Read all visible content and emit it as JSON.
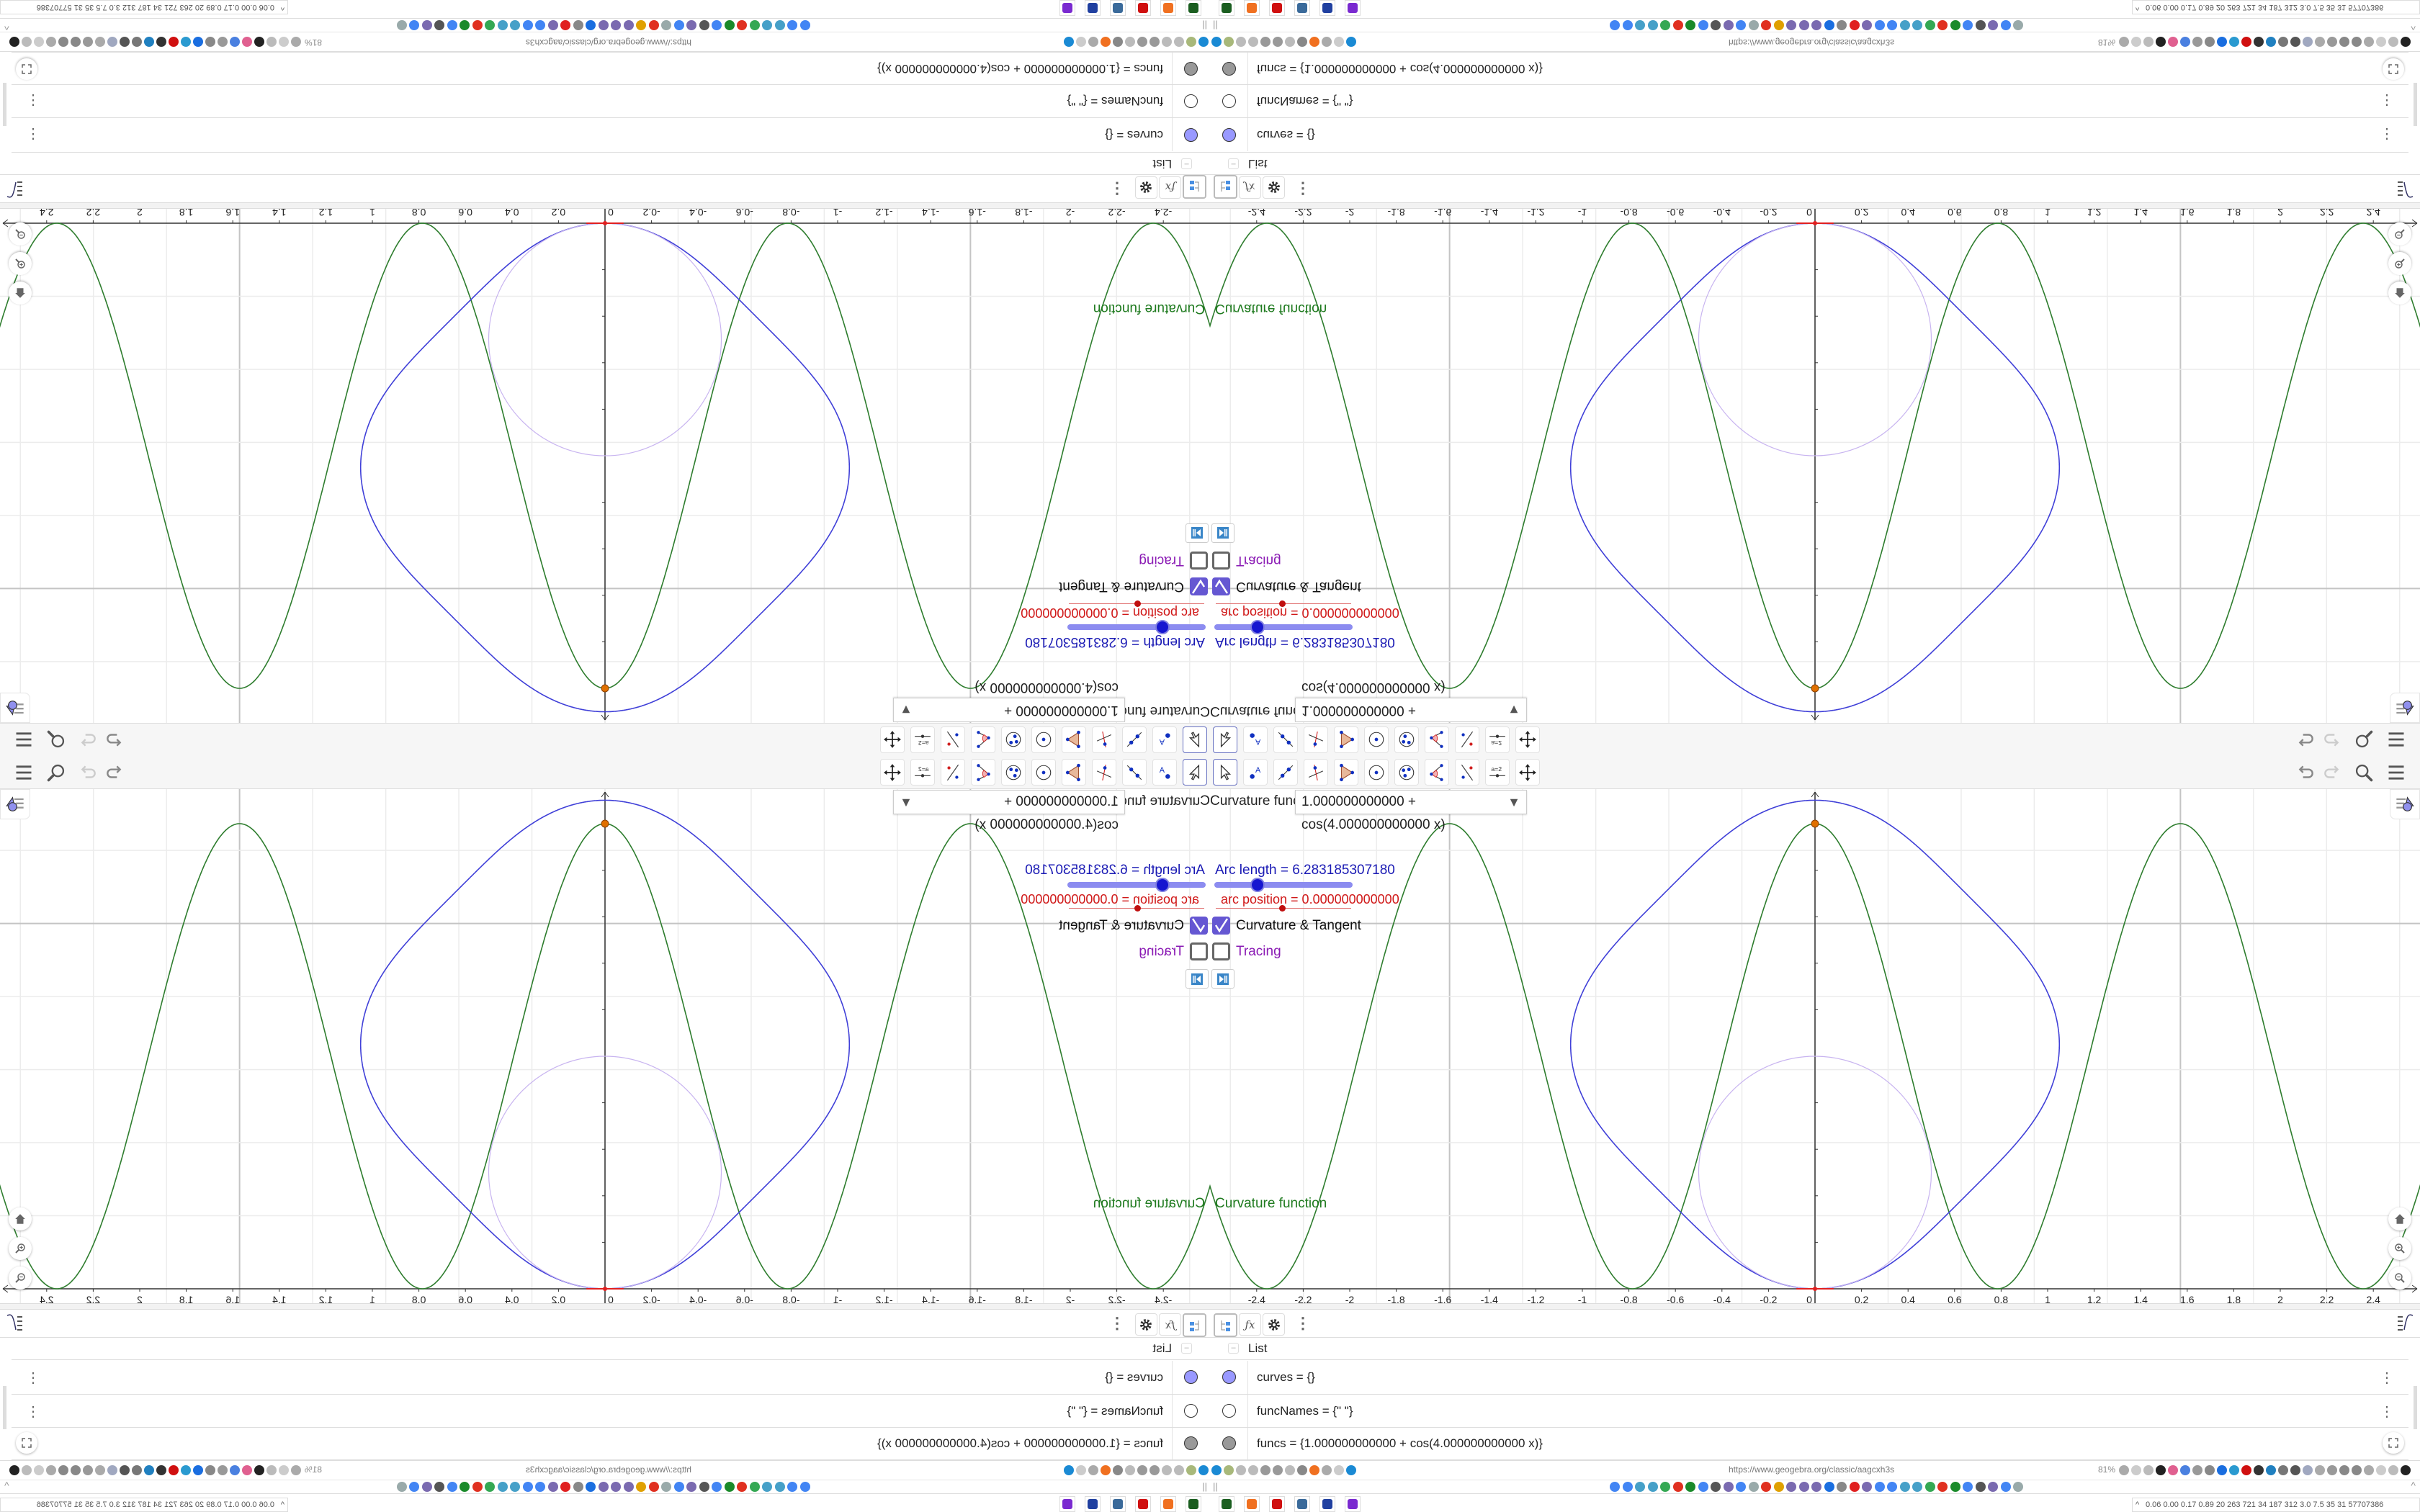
{
  "toolbar": {
    "tools": [
      "move-tool",
      "point-tool",
      "line-tool",
      "perpendicular-line-tool",
      "polygon-tool",
      "circle-center-tool",
      "circle-three-points-tool",
      "angle-tool",
      "reflect-tool",
      "slider-tool",
      "move-graphics-view-tool"
    ],
    "selected_tool": "move-tool",
    "slider_tool_text": "a=2",
    "point_tool_text": "A"
  },
  "graphics": {
    "input_label": "Curvature function",
    "input_value": "1.000000000000 + cos(4.000000000000 x)",
    "arc_length_label": "Arc length = 6.283185307180",
    "arc_length_slider_fraction": 0.31,
    "arc_position_label": "arc position = 0.000000000000",
    "arc_position_slider_fraction": 0.49,
    "checkbox_curvature": {
      "label": "Curvature & Tangent",
      "checked": true
    },
    "checkbox_tracing": {
      "label": "Tracing",
      "checked": false
    },
    "curve_label": "Curvature function",
    "x_tick_labels": [
      "-2.4",
      "-2.2",
      "-2",
      "-1.8",
      "-1.6",
      "-1.4",
      "-1.2",
      "-1",
      "-0.8",
      "-0.6",
      "-0.4",
      "-0.2",
      "0",
      "0.2",
      "0.4",
      "0.6",
      "0.8",
      "1",
      "1.2",
      "1.4",
      "1.6",
      "1.8",
      "2",
      "2.2",
      "2.4"
    ],
    "curvature_function": "1 + cos(4 x)",
    "arc_length_total": 6.28318530718,
    "arc_position": 0,
    "grid": true,
    "colors": {
      "curvature_graph": "#2e7d2e",
      "curve": "#4040d8",
      "osculating_circle": "#c8b4f0",
      "point": "#e07000",
      "tangent": "#e02020",
      "checkbox": "#6557d2",
      "tracing_label": "#8a1ab4"
    }
  },
  "algebra": {
    "group_label": "List",
    "rows": [
      {
        "text": "curves = {}",
        "marker_color": "#9999ff"
      },
      {
        "text": "funcNames = {\"  \"}",
        "marker_color": "#ffffff"
      },
      {
        "text": "funcs = {1.000000000000 + cos(4.000000000000 x)}",
        "marker_color": "#999999"
      }
    ]
  },
  "browser": {
    "url": "https://www.geogebra.org/classic/aagcxh3s",
    "zoom": "81%"
  },
  "taskbar": {
    "stats": "0.06 0.00 0.17 0.89  20  263  721  34  187  312  3.0  7.5  35  31  57707386",
    "apps": [
      "terminal-icon",
      "firefox-icon",
      "settings-icon",
      "remote-desktop-icon",
      "floppy-save-icon",
      "chat-app-icon"
    ]
  }
}
